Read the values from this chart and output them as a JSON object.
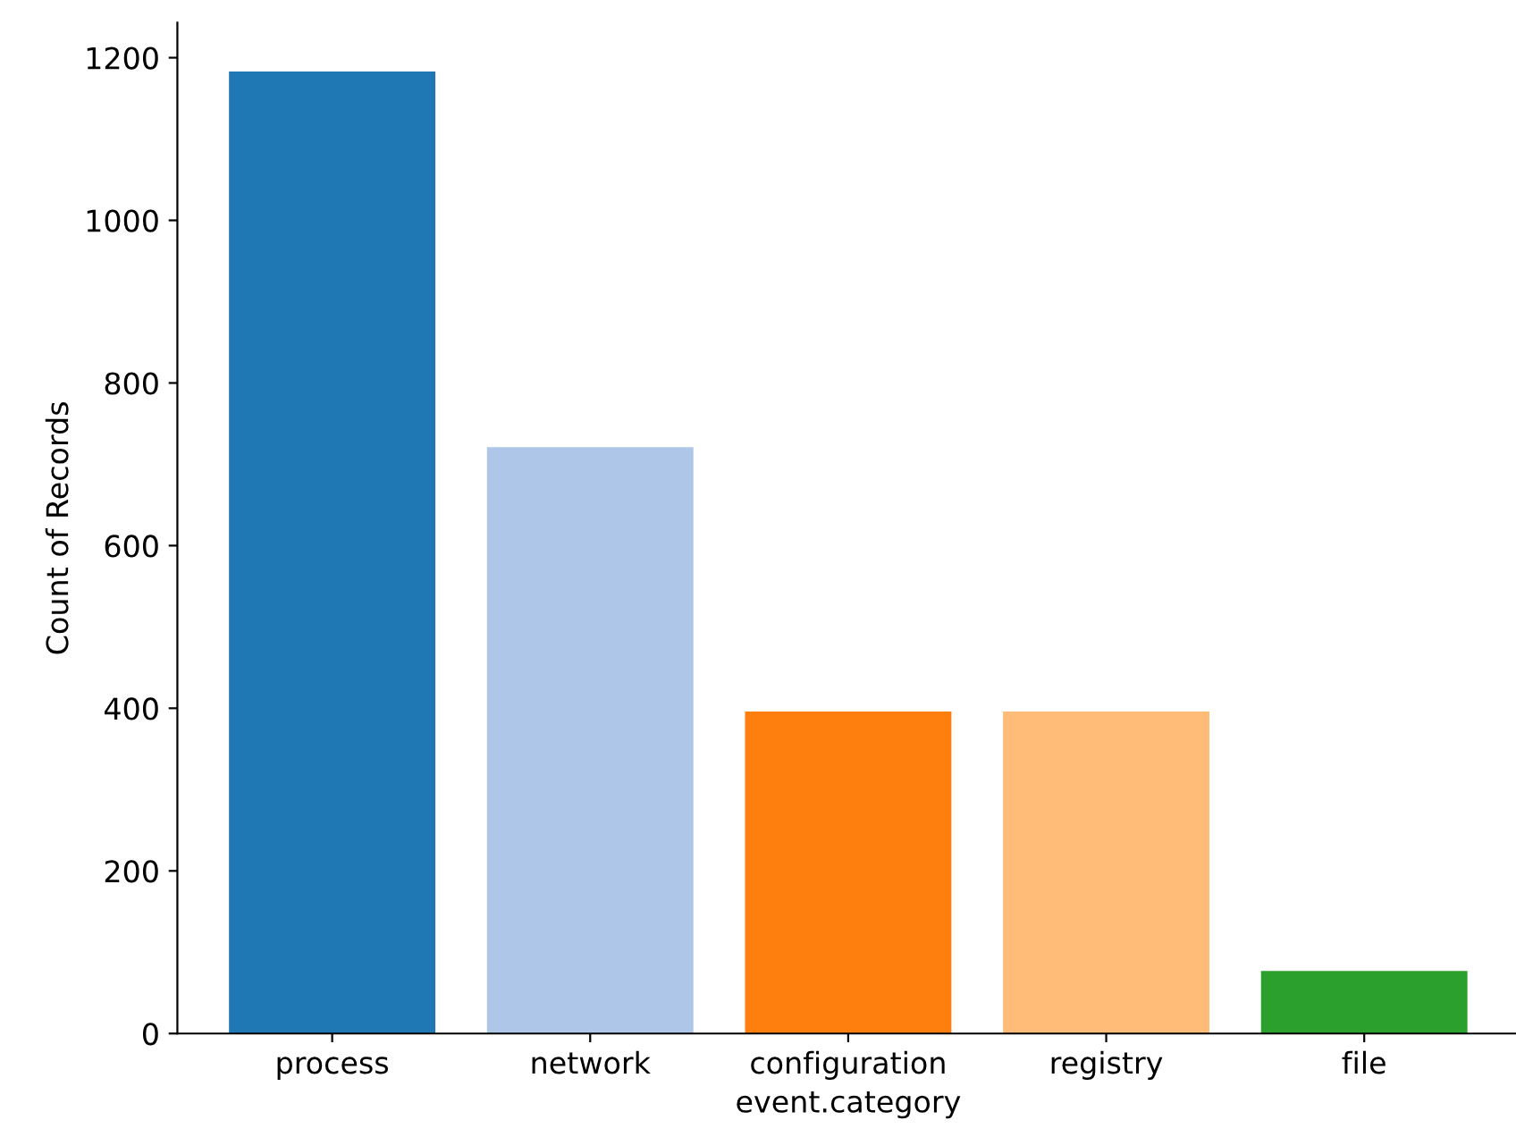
{
  "chart_data": {
    "type": "bar",
    "xlabel": "event.category",
    "ylabel": "Count of Records",
    "categories": [
      "process",
      "network",
      "configuration",
      "registry",
      "file"
    ],
    "values": [
      1183,
      721,
      396,
      396,
      77
    ],
    "colors": [
      "#1f77b4",
      "#aec7e8",
      "#ff7f0e",
      "#ffbb78",
      "#2ca02c"
    ],
    "ylim": [
      0,
      1243
    ],
    "yticks": [
      0,
      200,
      400,
      600,
      800,
      1000,
      1200
    ],
    "grid": false
  }
}
